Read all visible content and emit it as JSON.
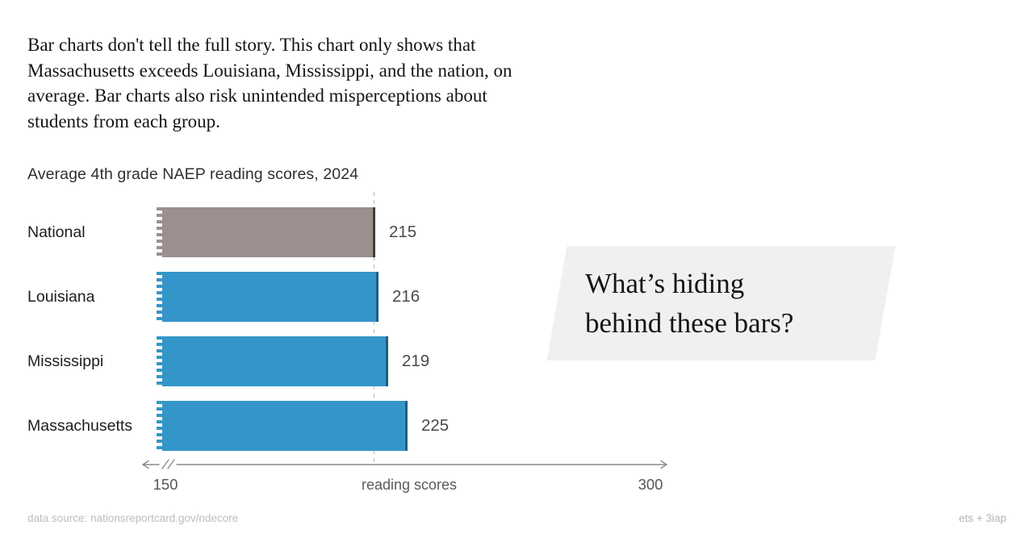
{
  "intro": {
    "text": "Bar charts don't tell the full story. This chart only shows that\nMassachusetts exceeds Louisiana, Mississippi, and the nation, on\naverage. Bar charts also risk unintended misperceptions about\nstudents from each group."
  },
  "chart_data": {
    "type": "bar",
    "orientation": "horizontal",
    "title": "Average 4th grade NAEP reading scores, 2024",
    "categories": [
      "National",
      "Louisiana",
      "Mississippi",
      "Massachusetts"
    ],
    "values": [
      215,
      216,
      219,
      225
    ],
    "value_labels": [
      "215",
      "216",
      "219",
      "225"
    ],
    "xlabel": "reading scores",
    "xlim": [
      150,
      300
    ],
    "tick_labels": [
      "150",
      "300"
    ],
    "axis_break_at_min": true,
    "reference_line_value": 215,
    "grid": "off",
    "bar_colors": [
      "#9b908d",
      "#3496c8",
      "#3496c8",
      "#3496c8"
    ],
    "bar_edge_colors": [
      "#3f3a37",
      "#1f5e84",
      "#1f5e84",
      "#1f5e84"
    ],
    "reference_line_color": "#c8c8c8",
    "axis_color": "#8c8c8c"
  },
  "callout": {
    "text": "What’s hiding\nbehind these bars?",
    "background": "#f0f0f0"
  },
  "footer": {
    "source": "data source: nationsreportcard.gov/ndecore",
    "credit": "ets + 3iap"
  }
}
